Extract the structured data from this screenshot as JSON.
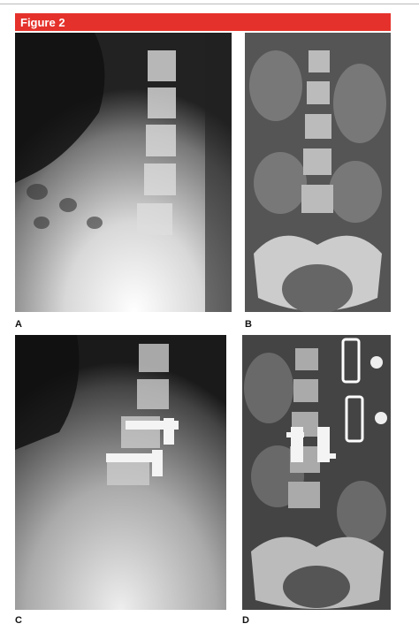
{
  "figure": {
    "title": "Figure 2",
    "panels": [
      {
        "label": "A"
      },
      {
        "label": "B"
      },
      {
        "label": "C"
      },
      {
        "label": "D"
      }
    ]
  }
}
